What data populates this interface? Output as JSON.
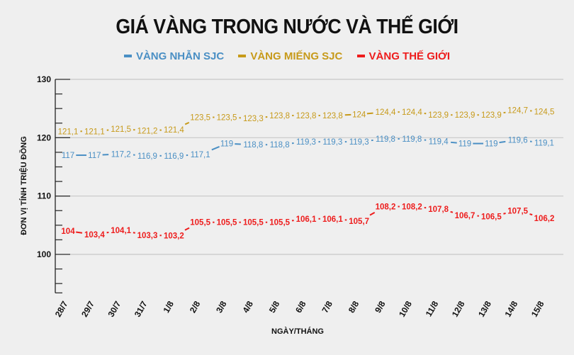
{
  "title": "GIÁ VÀNG TRONG NƯỚC VÀ THẾ GIỚI",
  "legend": [
    {
      "label": "VÀNG NHẪN SJC",
      "color": "#4a8fc4"
    },
    {
      "label": "VÀNG MIẾNG SJC",
      "color": "#c79a1a"
    },
    {
      "label": "VÀNG THẾ GIỚI",
      "color": "#ee1c1c"
    }
  ],
  "chart_data": {
    "type": "line",
    "title": "GIÁ VÀNG TRONG NƯỚC VÀ THẾ GIỚI",
    "xlabel": "NGÀY/THÁNG",
    "ylabel": "ĐƠN VỊ TÍNH TRIỆU ĐỒNG",
    "ylim": [
      93.4,
      130
    ],
    "yticks": [
      100,
      110,
      120,
      130
    ],
    "grid": true,
    "legend_position": "top",
    "categories": [
      "28/7",
      "29/7",
      "30/7",
      "31/7",
      "1/8",
      "2/8",
      "3/8",
      "4/8",
      "5/8",
      "6/8",
      "7/8",
      "8/8",
      "9/8",
      "10/8",
      "11/8",
      "12/8",
      "13/8",
      "14/8",
      "15/8"
    ],
    "series": [
      {
        "name": "VÀNG NHẪN SJC",
        "color": "#4a8fc4",
        "values": [
          117,
          117,
          117.2,
          116.9,
          116.9,
          117.1,
          119,
          118.8,
          118.8,
          119.3,
          119.3,
          119.3,
          119.8,
          119.8,
          119.4,
          119,
          119,
          119.6,
          119.1
        ],
        "labels": [
          "117",
          "117",
          "117,2",
          "116,9",
          "116,9",
          "117,1",
          "119",
          "118,8",
          "118,8",
          "119,3",
          "119,3",
          "119,3",
          "119,8",
          "119,8",
          "119,4",
          "119",
          "119",
          "119,6",
          "119,1"
        ]
      },
      {
        "name": "VÀNG MIẾNG SJC",
        "color": "#c79a1a",
        "values": [
          121.1,
          121.1,
          121.5,
          121.2,
          121.4,
          123.5,
          123.5,
          123.3,
          123.8,
          123.8,
          123.8,
          124,
          124.4,
          124.4,
          123.9,
          123.9,
          123.9,
          124.7,
          124.5
        ],
        "labels": [
          "121,1",
          "121,1",
          "121,5",
          "121,2",
          "121,4",
          "123,5",
          "123,5",
          "123,3",
          "123,8",
          "123,8",
          "123,8",
          "124",
          "124,4",
          "124,4",
          "123,9",
          "123,9",
          "123,9",
          "124,7",
          "124,5"
        ]
      },
      {
        "name": "VÀNG THẾ GIỚI",
        "color": "#ee1c1c",
        "values": [
          104,
          103.4,
          104.1,
          103.3,
          103.2,
          105.5,
          105.5,
          105.5,
          105.5,
          106.1,
          106.1,
          105.7,
          108.2,
          108.2,
          107.8,
          106.7,
          106.5,
          107.5,
          106.2
        ],
        "labels": [
          "104",
          "103,4",
          "104,1",
          "103,3",
          "103,2",
          "105,5",
          "105,5",
          "105,5",
          "105,5",
          "106,1",
          "106,1",
          "105,7",
          "108,2",
          "108,2",
          "107,8",
          "106,7",
          "106,5",
          "107,5",
          "106,2"
        ]
      }
    ]
  }
}
